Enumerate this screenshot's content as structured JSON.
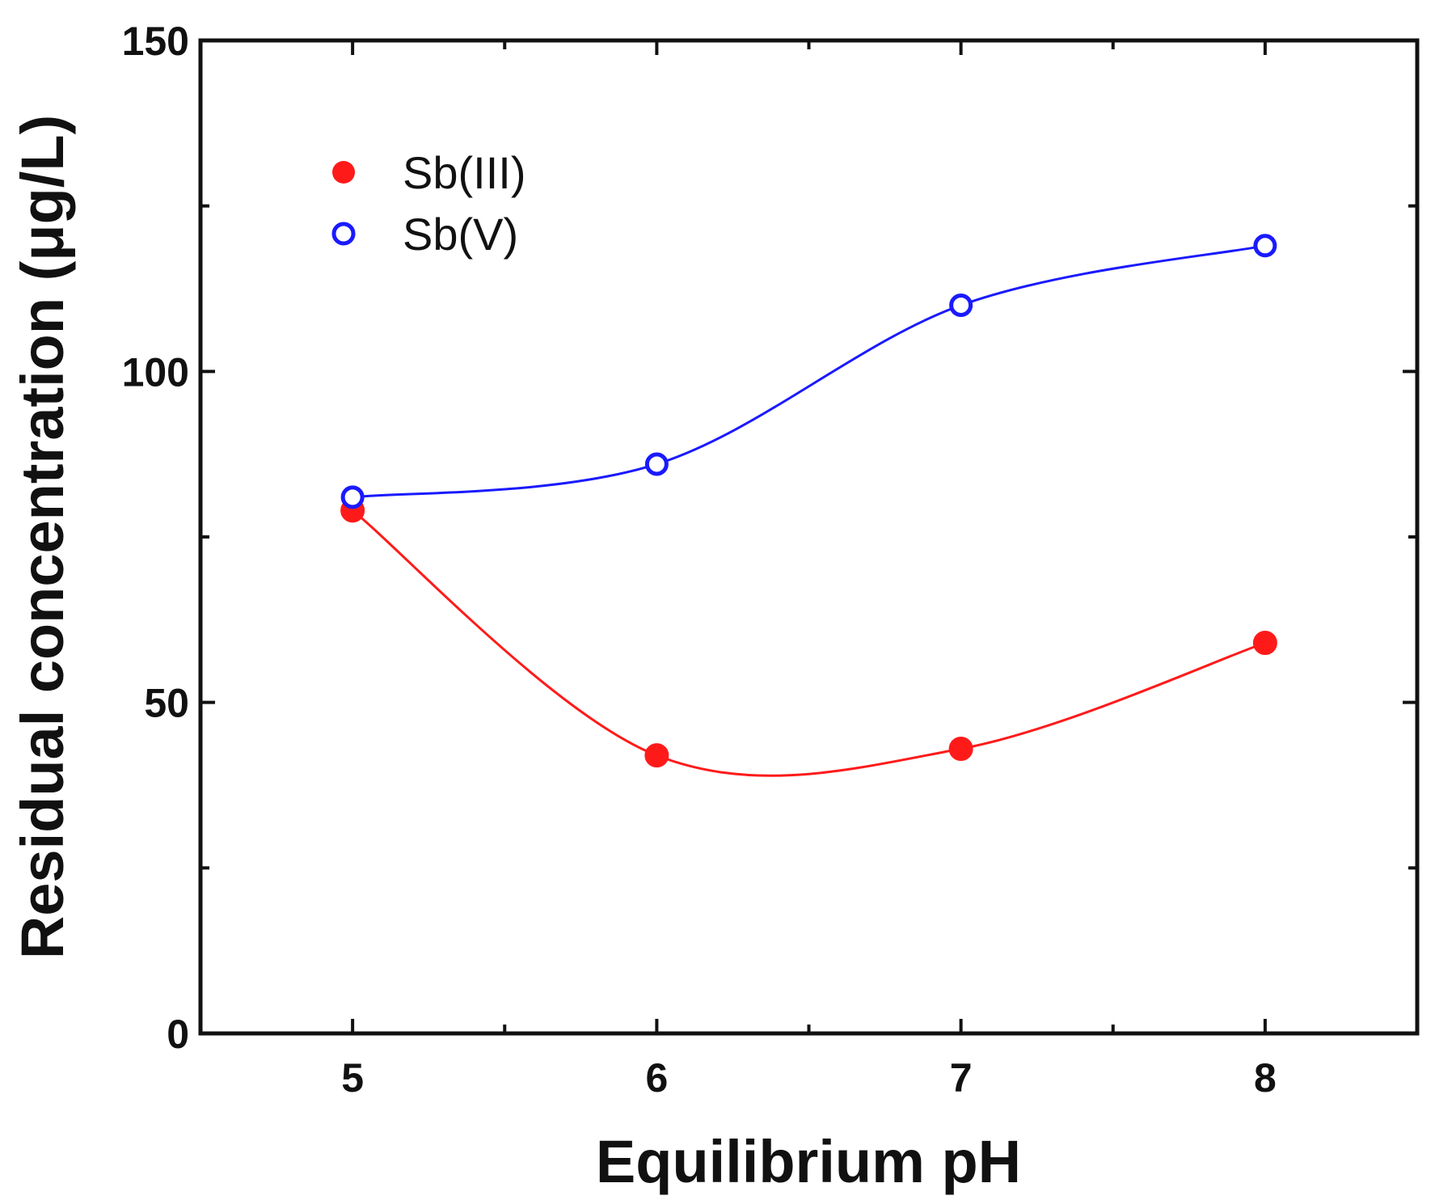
{
  "chart_data": {
    "type": "line",
    "title": "",
    "xlabel": "Equilibrium pH",
    "ylabel": "Residual concentration (μg/L)",
    "xlim": [
      4.5,
      8.5
    ],
    "ylim": [
      0,
      150
    ],
    "x_major_ticks": [
      5,
      6,
      7,
      8
    ],
    "x_tick_labels": [
      "5",
      "6",
      "7",
      "8"
    ],
    "x_minor_ticks": [
      5.5,
      6.5,
      7.5
    ],
    "y_major_ticks": [
      0,
      50,
      100,
      150
    ],
    "y_tick_labels": [
      "0",
      "50",
      "100",
      "150"
    ],
    "y_minor_ticks": [
      25,
      75,
      125
    ],
    "grid": false,
    "legend_position": "top-left",
    "series": [
      {
        "name": "Sb(III)",
        "marker": "filled-circle",
        "color": "#ff1a1a",
        "x": [
          5,
          6,
          7,
          8
        ],
        "values": [
          79,
          42,
          43,
          59
        ]
      },
      {
        "name": "Sb(V)",
        "marker": "open-circle",
        "color": "#1a1aff",
        "x": [
          5,
          6,
          7,
          8
        ],
        "values": [
          81,
          86,
          110,
          119
        ]
      }
    ]
  }
}
